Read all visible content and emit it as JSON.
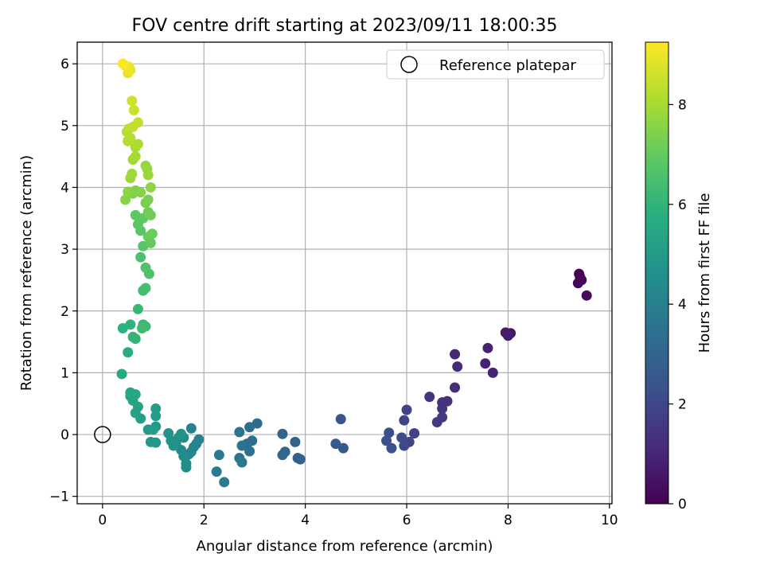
{
  "chart_data": {
    "type": "scatter",
    "title": "FOV centre drift starting at 2023/09/11 18:00:35",
    "xlabel": "Angular distance from reference (arcmin)",
    "ylabel": "Rotation from reference (arcmin)",
    "xlim": [
      -0.5,
      10.05
    ],
    "ylim": [
      -1.12,
      6.35
    ],
    "xticks": [
      0,
      2,
      4,
      6,
      8,
      10
    ],
    "yticks": [
      -1,
      0,
      1,
      2,
      3,
      4,
      5,
      6
    ],
    "grid": true,
    "legend": {
      "position": "top-right",
      "entries": [
        "Reference platepar"
      ]
    },
    "colorbar": {
      "label": "Hours from first FF file",
      "colormap": "viridis",
      "range": [
        0,
        9.25
      ],
      "ticks": [
        0,
        2,
        4,
        6,
        8
      ]
    },
    "reference": {
      "x": 0,
      "y": 0,
      "label": "Reference platepar"
    },
    "points": [
      [
        9.4,
        2.6,
        0.05
      ],
      [
        9.42,
        2.55,
        0.1
      ],
      [
        9.38,
        2.45,
        0.15
      ],
      [
        9.45,
        2.5,
        0.2
      ],
      [
        9.55,
        2.25,
        0.3
      ],
      [
        8.05,
        1.64,
        0.6
      ],
      [
        7.95,
        1.65,
        0.65
      ],
      [
        8.0,
        1.6,
        0.7
      ],
      [
        7.6,
        1.4,
        0.85
      ],
      [
        7.55,
        1.15,
        0.9
      ],
      [
        7.7,
        1.0,
        0.95
      ],
      [
        6.95,
        1.3,
        1.05
      ],
      [
        7.0,
        1.1,
        1.1
      ],
      [
        6.95,
        0.76,
        1.2
      ],
      [
        6.8,
        0.54,
        1.3
      ],
      [
        6.7,
        0.52,
        1.35
      ],
      [
        6.7,
        0.42,
        1.4
      ],
      [
        6.45,
        0.61,
        1.45
      ],
      [
        6.7,
        0.28,
        1.55
      ],
      [
        6.6,
        0.2,
        1.6
      ],
      [
        6.15,
        0.02,
        1.8
      ],
      [
        6.0,
        0.4,
        1.85
      ],
      [
        5.95,
        0.23,
        1.9
      ],
      [
        6.05,
        -0.12,
        2.0
      ],
      [
        5.95,
        -0.18,
        2.05
      ],
      [
        5.9,
        -0.05,
        2.1
      ],
      [
        5.65,
        0.03,
        2.2
      ],
      [
        5.6,
        -0.1,
        2.25
      ],
      [
        5.7,
        -0.22,
        2.3
      ],
      [
        4.7,
        0.25,
        2.45
      ],
      [
        4.6,
        -0.15,
        2.55
      ],
      [
        4.75,
        -0.22,
        2.6
      ],
      [
        3.85,
        -0.38,
        2.8
      ],
      [
        3.9,
        -0.4,
        2.85
      ],
      [
        3.8,
        -0.12,
        2.9
      ],
      [
        3.55,
        0.01,
        3.0
      ],
      [
        3.6,
        -0.28,
        3.05
      ],
      [
        3.55,
        -0.33,
        3.1
      ],
      [
        3.05,
        0.18,
        3.2
      ],
      [
        2.9,
        0.12,
        3.3
      ],
      [
        2.95,
        -0.1,
        3.35
      ],
      [
        2.85,
        -0.15,
        3.4
      ],
      [
        2.9,
        -0.27,
        3.45
      ],
      [
        2.7,
        0.04,
        3.5
      ],
      [
        2.75,
        -0.18,
        3.55
      ],
      [
        2.7,
        -0.38,
        3.6
      ],
      [
        2.75,
        -0.45,
        3.65
      ],
      [
        2.3,
        -0.33,
        3.75
      ],
      [
        2.25,
        -0.6,
        3.8
      ],
      [
        2.4,
        -0.77,
        3.85
      ],
      [
        1.9,
        -0.08,
        4.0
      ],
      [
        1.85,
        -0.15,
        4.05
      ],
      [
        1.75,
        0.1,
        4.1
      ],
      [
        1.8,
        -0.2,
        4.15
      ],
      [
        1.75,
        -0.28,
        4.2
      ],
      [
        1.7,
        -0.32,
        4.25
      ],
      [
        1.6,
        -0.05,
        4.3
      ],
      [
        1.55,
        -0.25,
        4.35
      ],
      [
        1.6,
        -0.35,
        4.4
      ],
      [
        1.65,
        -0.47,
        4.45
      ],
      [
        1.65,
        -0.53,
        4.5
      ],
      [
        1.5,
        -0.05,
        4.55
      ],
      [
        1.45,
        -0.15,
        4.6
      ],
      [
        1.4,
        -0.18,
        4.65
      ],
      [
        1.35,
        -0.1,
        4.7
      ],
      [
        1.3,
        0.02,
        4.75
      ],
      [
        1.55,
        0.01,
        4.8
      ],
      [
        1.05,
        0.13,
        4.85
      ],
      [
        1.05,
        -0.13,
        4.9
      ],
      [
        0.95,
        -0.12,
        4.95
      ],
      [
        0.9,
        0.08,
        5.0
      ],
      [
        1.0,
        0.08,
        5.05
      ],
      [
        1.05,
        0.3,
        5.1
      ],
      [
        1.05,
        0.42,
        5.15
      ],
      [
        0.75,
        0.26,
        5.2
      ],
      [
        0.65,
        0.35,
        5.25
      ],
      [
        0.7,
        0.45,
        5.3
      ],
      [
        0.6,
        0.55,
        5.35
      ],
      [
        0.55,
        0.62,
        5.4
      ],
      [
        0.55,
        0.68,
        5.45
      ],
      [
        0.65,
        0.65,
        5.5
      ],
      [
        0.38,
        0.98,
        5.6
      ],
      [
        0.5,
        1.33,
        5.7
      ],
      [
        0.4,
        1.72,
        5.85
      ],
      [
        0.55,
        1.78,
        5.95
      ],
      [
        0.65,
        1.55,
        6.0
      ],
      [
        0.6,
        1.58,
        6.05
      ],
      [
        0.7,
        2.03,
        6.15
      ],
      [
        0.8,
        1.78,
        6.2
      ],
      [
        0.85,
        1.75,
        6.25
      ],
      [
        0.78,
        1.72,
        6.3
      ],
      [
        0.8,
        2.33,
        6.35
      ],
      [
        0.85,
        2.37,
        6.45
      ],
      [
        0.75,
        2.87,
        6.55
      ],
      [
        0.92,
        2.6,
        6.6
      ],
      [
        0.85,
        2.7,
        6.65
      ],
      [
        0.8,
        3.05,
        6.75
      ],
      [
        0.75,
        3.3,
        6.8
      ],
      [
        0.7,
        3.4,
        6.85
      ],
      [
        0.65,
        3.55,
        6.9
      ],
      [
        0.8,
        3.5,
        6.95
      ],
      [
        0.95,
        3.1,
        7.0
      ],
      [
        0.9,
        3.2,
        7.05
      ],
      [
        0.98,
        3.25,
        7.1
      ],
      [
        0.9,
        3.6,
        7.2
      ],
      [
        0.95,
        3.55,
        7.25
      ],
      [
        0.85,
        3.75,
        7.3
      ],
      [
        0.9,
        3.8,
        7.35
      ],
      [
        0.6,
        3.9,
        7.4
      ],
      [
        0.65,
        3.95,
        7.45
      ],
      [
        0.75,
        3.92,
        7.5
      ],
      [
        0.45,
        3.8,
        7.55
      ],
      [
        0.5,
        3.93,
        7.6
      ],
      [
        0.95,
        4.0,
        7.65
      ],
      [
        0.88,
        4.3,
        7.7
      ],
      [
        0.85,
        4.35,
        7.75
      ],
      [
        0.9,
        4.2,
        7.8
      ],
      [
        0.55,
        4.15,
        7.85
      ],
      [
        0.58,
        4.22,
        7.9
      ],
      [
        0.6,
        4.45,
        7.95
      ],
      [
        0.65,
        4.5,
        8.0
      ],
      [
        0.65,
        4.65,
        8.05
      ],
      [
        0.7,
        4.7,
        8.1
      ],
      [
        0.5,
        4.75,
        8.15
      ],
      [
        0.55,
        4.8,
        8.2
      ],
      [
        0.48,
        4.9,
        8.25
      ],
      [
        0.52,
        4.95,
        8.3
      ],
      [
        0.6,
        4.98,
        8.35
      ],
      [
        0.7,
        5.05,
        8.4
      ],
      [
        0.62,
        5.25,
        8.5
      ],
      [
        0.58,
        5.4,
        8.6
      ],
      [
        0.55,
        5.9,
        8.9
      ],
      [
        0.5,
        5.85,
        8.95
      ],
      [
        0.52,
        5.95,
        9.0
      ],
      [
        0.45,
        5.97,
        9.1
      ],
      [
        0.4,
        6.0,
        9.2
      ]
    ]
  }
}
